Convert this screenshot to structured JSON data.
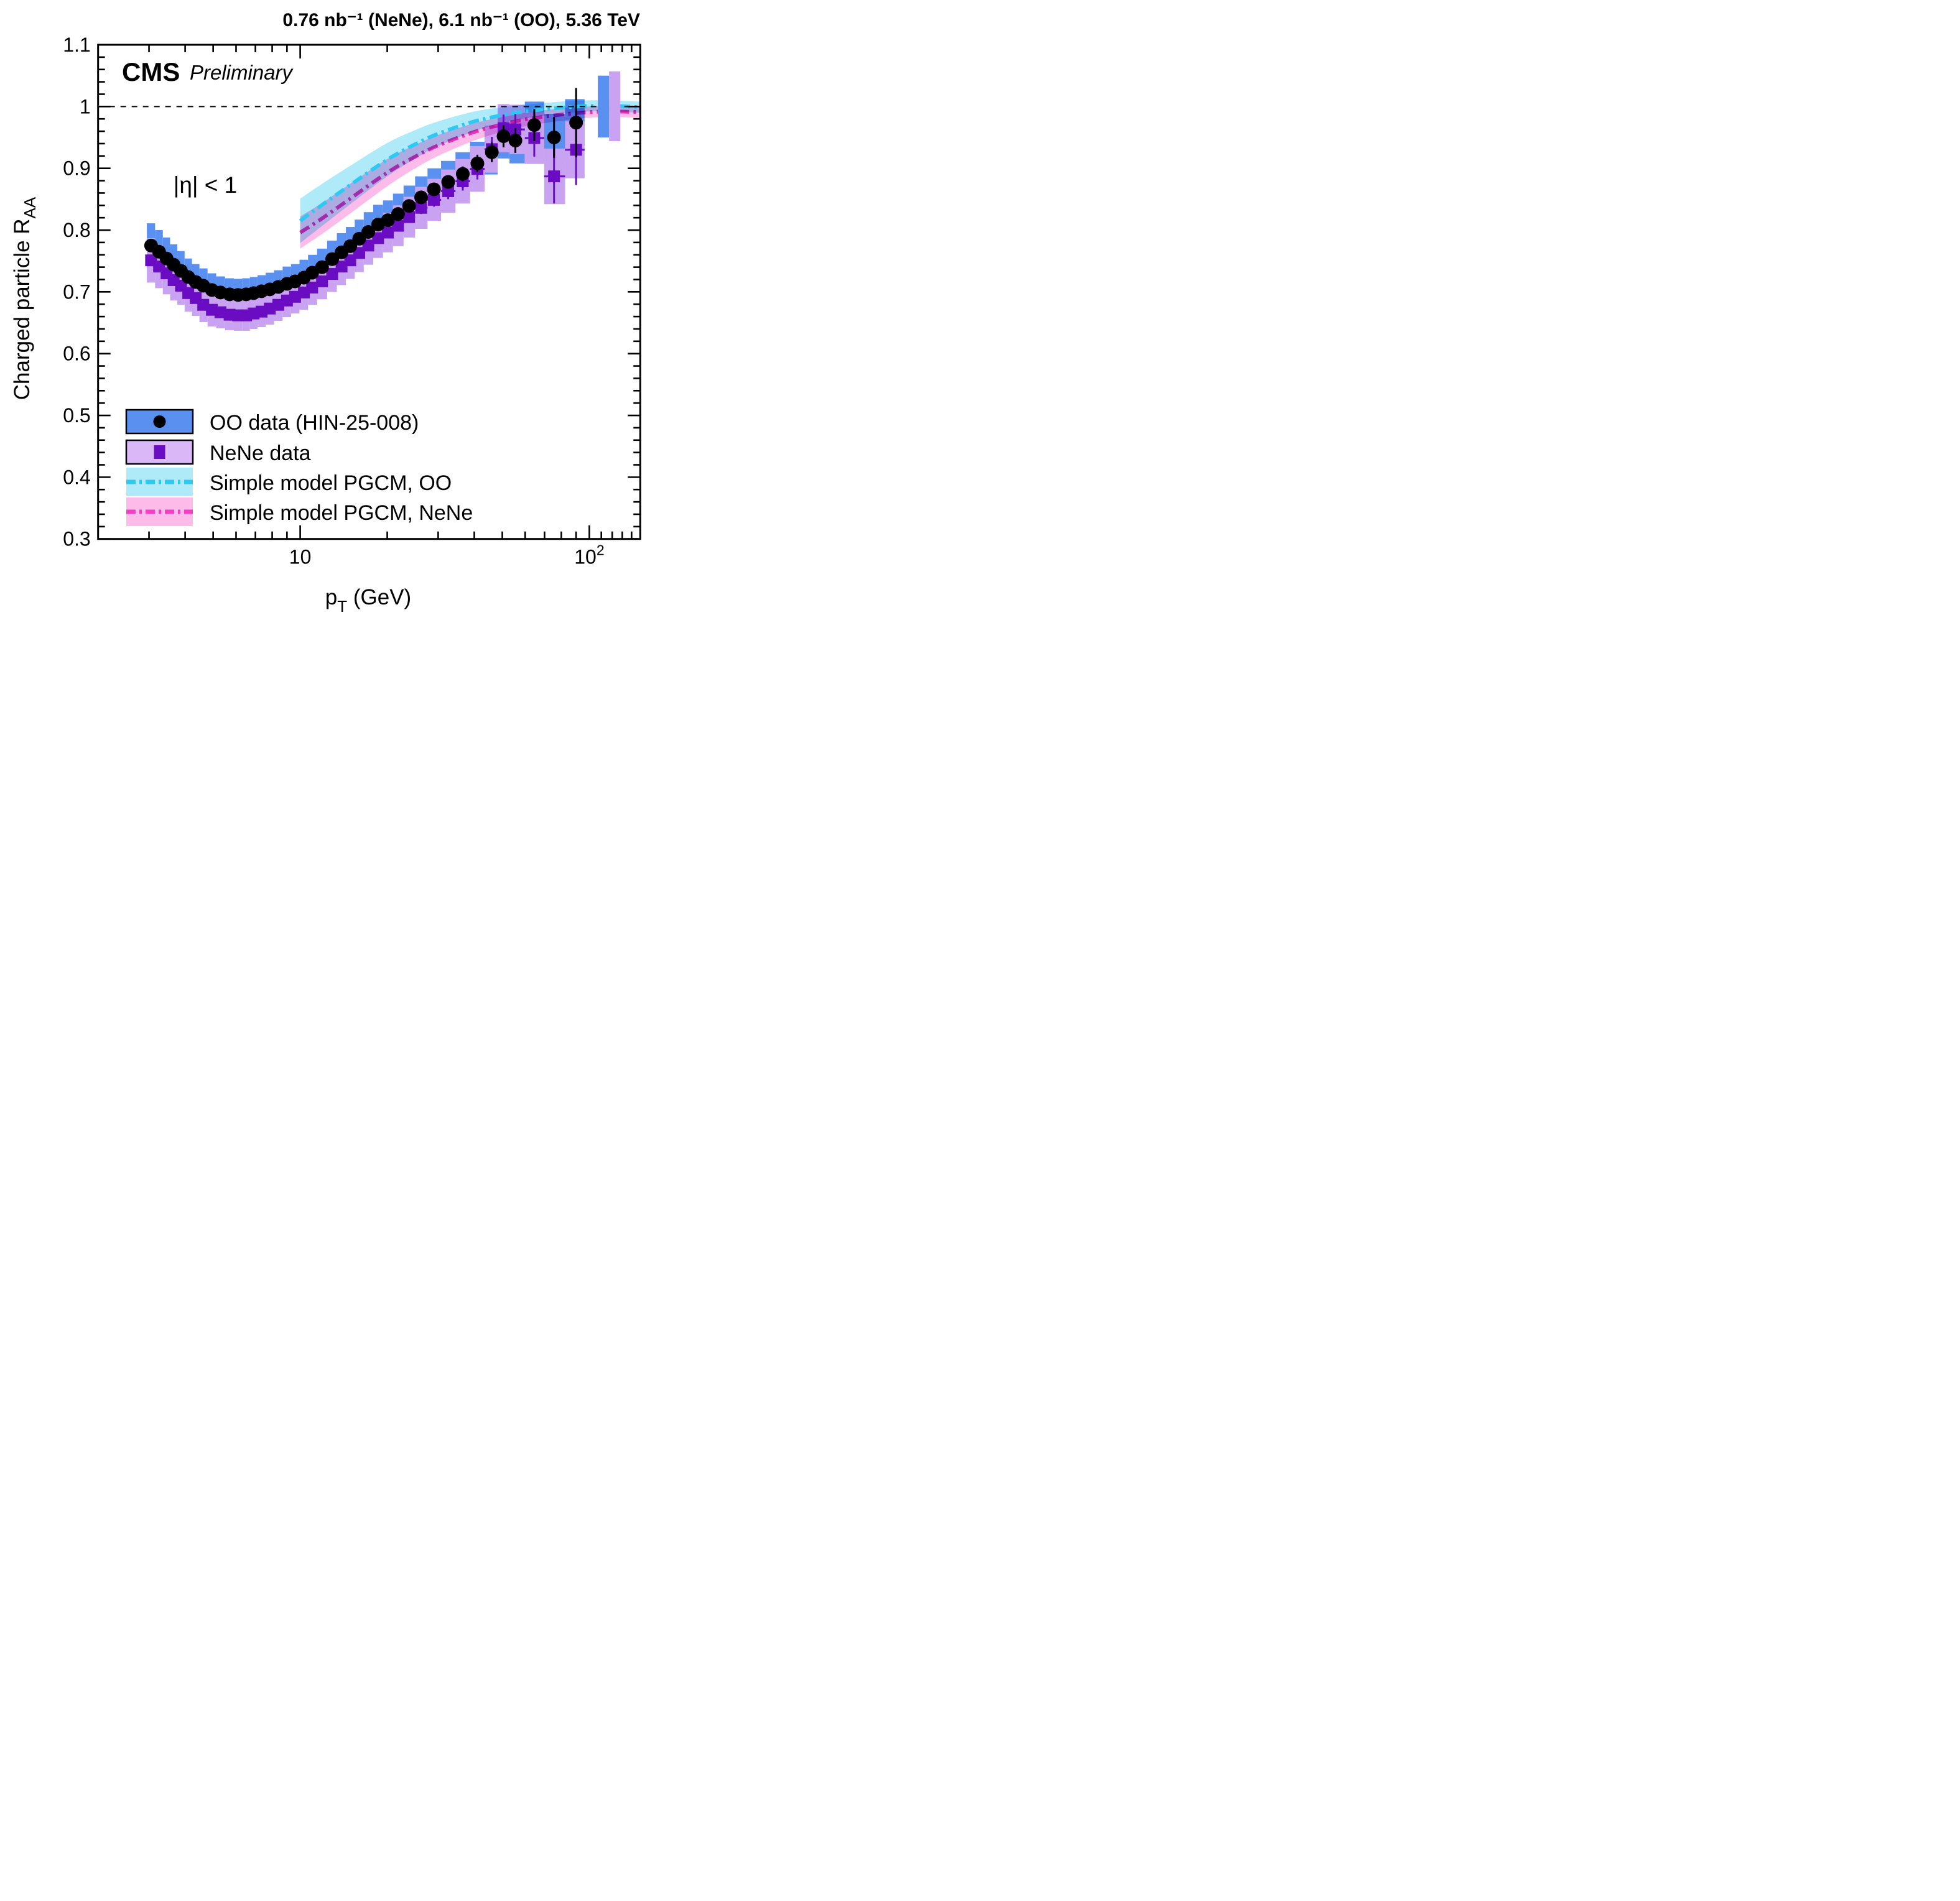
{
  "header": {
    "lumi_energy_label": "0.76 nb⁻¹ (NeNe), 6.1 nb⁻¹ (OO), 5.36 TeV",
    "experiment": "CMS",
    "status": "Preliminary"
  },
  "annotations": {
    "eta_cut": "|η| < 1"
  },
  "axes": {
    "x": {
      "label_main": "p",
      "label_sub": "T",
      "label_rest": " (GeV)",
      "scale": "log",
      "min": 2,
      "max": 150,
      "major_ticks": [
        10,
        100
      ],
      "major_tick_labels": [
        {
          "base": "10",
          "sup": ""
        },
        {
          "base": "10",
          "sup": "2"
        }
      ]
    },
    "y": {
      "label_main": "Charged particle R",
      "label_sub": "AA",
      "min": 0.3,
      "max": 1.1,
      "major_step": 0.1,
      "minor_step": 0.02,
      "tick_values": [
        0.3,
        0.4,
        0.5,
        0.6,
        0.7,
        0.8,
        0.9,
        1.0,
        1.1
      ],
      "tick_labels": [
        "0.3",
        "0.4",
        "0.5",
        "0.6",
        "0.7",
        "0.8",
        "0.9",
        "1",
        "1.1"
      ]
    },
    "reference_line_y": 1.0
  },
  "colors": {
    "oo_box": "#5a90f0",
    "nene_box": "#c9a2f2",
    "nene_box_legend": "#dab8f8",
    "oo_marker": "#000000",
    "nene_marker": "#6a0cc2",
    "pgcm_oo_band": "#aeeaf8",
    "pgcm_oo_line": "#2ec9f2",
    "pgcm_nene_band": "#fdbbe9",
    "pgcm_nene_line": "#f23fc4",
    "reference_line": "#000000"
  },
  "legend": {
    "items": [
      {
        "label": "OO data (HIN-25-008)",
        "swatch": "box-marker",
        "box_color": "#5a90f0",
        "border": "#000000",
        "marker": "circle",
        "marker_color": "#000000"
      },
      {
        "label": "NeNe data",
        "swatch": "box-marker",
        "box_color": "#dab8f8",
        "border": "#000000",
        "marker": "square",
        "marker_color": "#6a0cc2"
      },
      {
        "label": "Simple model PGCM, OO",
        "swatch": "band-line",
        "box_color": "#aeeaf8",
        "line_color": "#2ec9f2"
      },
      {
        "label": "Simple model PGCM, NeNe",
        "swatch": "band-line",
        "box_color": "#fdbbe9",
        "line_color": "#f23fc4"
      }
    ]
  },
  "chart_data": {
    "type": "scatter",
    "title": "Charged particle nuclear modification factor in OO and NeNe collisions at 5.36 TeV",
    "xlabel": "pT (GeV)",
    "ylabel": "Charged particle RAA",
    "xlim": [
      2,
      150
    ],
    "ylim": [
      0.3,
      1.1
    ],
    "x_scale": "log",
    "grid": false,
    "legend_position": "lower-left",
    "point_format": [
      "pT_GeV",
      "RAA",
      "stat_err",
      "sys_half_height"
    ],
    "series": [
      {
        "name": "OO data (HIN-25-008)",
        "marker": "circle",
        "points": [
          [
            3.05,
            0.775,
            0.003,
            0.036
          ],
          [
            3.25,
            0.765,
            0.003,
            0.035
          ],
          [
            3.45,
            0.754,
            0.003,
            0.034
          ],
          [
            3.65,
            0.744,
            0.003,
            0.033
          ],
          [
            3.87,
            0.734,
            0.003,
            0.032
          ],
          [
            4.1,
            0.724,
            0.003,
            0.03
          ],
          [
            4.35,
            0.716,
            0.003,
            0.029
          ],
          [
            4.62,
            0.71,
            0.003,
            0.028
          ],
          [
            4.95,
            0.703,
            0.003,
            0.027
          ],
          [
            5.3,
            0.699,
            0.003,
            0.026
          ],
          [
            5.7,
            0.696,
            0.003,
            0.026
          ],
          [
            6.1,
            0.695,
            0.003,
            0.026
          ],
          [
            6.5,
            0.696,
            0.003,
            0.026
          ],
          [
            6.9,
            0.698,
            0.003,
            0.026
          ],
          [
            7.35,
            0.701,
            0.003,
            0.026
          ],
          [
            7.85,
            0.704,
            0.003,
            0.027
          ],
          [
            8.4,
            0.708,
            0.003,
            0.027
          ],
          [
            9.0,
            0.713,
            0.003,
            0.028
          ],
          [
            9.6,
            0.717,
            0.003,
            0.028
          ],
          [
            10.3,
            0.723,
            0.004,
            0.029
          ],
          [
            11.0,
            0.731,
            0.004,
            0.029
          ],
          [
            11.9,
            0.74,
            0.004,
            0.03
          ],
          [
            12.9,
            0.753,
            0.004,
            0.03
          ],
          [
            13.9,
            0.764,
            0.004,
            0.031
          ],
          [
            14.9,
            0.774,
            0.005,
            0.031
          ],
          [
            16.0,
            0.786,
            0.005,
            0.031
          ],
          [
            17.2,
            0.797,
            0.005,
            0.032
          ],
          [
            18.6,
            0.809,
            0.006,
            0.032
          ],
          [
            20.1,
            0.816,
            0.006,
            0.032
          ],
          [
            21.8,
            0.826,
            0.007,
            0.033
          ],
          [
            23.8,
            0.839,
            0.007,
            0.033
          ],
          [
            26.2,
            0.853,
            0.008,
            0.034
          ],
          [
            29.0,
            0.866,
            0.009,
            0.034
          ],
          [
            32.5,
            0.878,
            0.01,
            0.034
          ],
          [
            36.5,
            0.891,
            0.012,
            0.035
          ],
          [
            41.0,
            0.908,
            0.014,
            0.035
          ],
          [
            46.0,
            0.926,
            0.016,
            0.036
          ],
          [
            50.5,
            0.952,
            0.018,
            0.036
          ],
          [
            55.5,
            0.945,
            0.02,
            0.037
          ],
          [
            64.5,
            0.97,
            0.026,
            0.038
          ],
          [
            75.5,
            0.95,
            0.033,
            0.038
          ],
          [
            90.0,
            0.974,
            0.056,
            0.038
          ]
        ]
      },
      {
        "name": "NeNe data",
        "marker": "square",
        "points": [
          [
            3.05,
            0.751,
            0.003,
            0.036
          ],
          [
            3.25,
            0.741,
            0.003,
            0.035
          ],
          [
            3.45,
            0.73,
            0.003,
            0.034
          ],
          [
            3.65,
            0.719,
            0.003,
            0.033
          ],
          [
            3.87,
            0.71,
            0.003,
            0.031
          ],
          [
            4.1,
            0.698,
            0.003,
            0.03
          ],
          [
            4.35,
            0.69,
            0.003,
            0.029
          ],
          [
            4.62,
            0.679,
            0.003,
            0.028
          ],
          [
            4.95,
            0.671,
            0.003,
            0.027
          ],
          [
            5.3,
            0.667,
            0.003,
            0.026
          ],
          [
            5.7,
            0.663,
            0.003,
            0.025
          ],
          [
            6.1,
            0.662,
            0.003,
            0.025
          ],
          [
            6.5,
            0.662,
            0.003,
            0.025
          ],
          [
            6.9,
            0.665,
            0.003,
            0.025
          ],
          [
            7.35,
            0.668,
            0.003,
            0.025
          ],
          [
            7.85,
            0.673,
            0.003,
            0.026
          ],
          [
            8.4,
            0.679,
            0.003,
            0.026
          ],
          [
            9.0,
            0.686,
            0.004,
            0.027
          ],
          [
            9.6,
            0.692,
            0.004,
            0.027
          ],
          [
            10.3,
            0.699,
            0.004,
            0.028
          ],
          [
            11.0,
            0.707,
            0.004,
            0.028
          ],
          [
            11.9,
            0.717,
            0.005,
            0.029
          ],
          [
            12.9,
            0.729,
            0.005,
            0.029
          ],
          [
            13.9,
            0.741,
            0.005,
            0.03
          ],
          [
            14.9,
            0.751,
            0.006,
            0.03
          ],
          [
            16.0,
            0.763,
            0.006,
            0.031
          ],
          [
            17.2,
            0.775,
            0.007,
            0.031
          ],
          [
            18.6,
            0.787,
            0.007,
            0.032
          ],
          [
            20.1,
            0.796,
            0.008,
            0.032
          ],
          [
            21.8,
            0.807,
            0.008,
            0.033
          ],
          [
            23.8,
            0.821,
            0.009,
            0.033
          ],
          [
            26.2,
            0.836,
            0.01,
            0.034
          ],
          [
            29.0,
            0.849,
            0.011,
            0.034
          ],
          [
            32.5,
            0.863,
            0.013,
            0.035
          ],
          [
            36.5,
            0.879,
            0.015,
            0.036
          ],
          [
            41.0,
            0.899,
            0.017,
            0.037
          ],
          [
            46.0,
            0.931,
            0.02,
            0.038
          ],
          [
            50.5,
            0.965,
            0.022,
            0.039
          ],
          [
            55.5,
            0.963,
            0.025,
            0.04
          ],
          [
            64.5,
            0.949,
            0.03,
            0.042
          ],
          [
            75.5,
            0.887,
            0.044,
            0.045
          ],
          [
            90.0,
            0.93,
            0.057,
            0.046
          ]
        ]
      }
    ],
    "models": [
      {
        "name": "Simple model PGCM, OO",
        "band_format": [
          "pT_GeV",
          "center",
          "half_width"
        ],
        "points": [
          [
            10,
            0.815,
            0.036
          ],
          [
            12,
            0.842,
            0.034
          ],
          [
            15,
            0.874,
            0.031
          ],
          [
            20,
            0.914,
            0.027
          ],
          [
            25,
            0.939,
            0.023
          ],
          [
            30,
            0.956,
            0.02
          ],
          [
            40,
            0.976,
            0.016
          ],
          [
            50,
            0.986,
            0.013
          ],
          [
            60,
            0.992,
            0.011
          ],
          [
            80,
            0.998,
            0.01
          ],
          [
            100,
            1.001,
            0.009
          ],
          [
            120,
            1.001,
            0.009
          ],
          [
            150,
            0.999,
            0.009
          ]
        ]
      },
      {
        "name": "Simple model PGCM, NeNe",
        "band_format": [
          "pT_GeV",
          "center",
          "half_width"
        ],
        "points": [
          [
            10,
            0.796,
            0.026
          ],
          [
            12,
            0.82,
            0.025
          ],
          [
            15,
            0.852,
            0.024
          ],
          [
            20,
            0.893,
            0.022
          ],
          [
            25,
            0.919,
            0.019
          ],
          [
            30,
            0.937,
            0.017
          ],
          [
            40,
            0.959,
            0.014
          ],
          [
            50,
            0.971,
            0.012
          ],
          [
            60,
            0.979,
            0.011
          ],
          [
            80,
            0.987,
            0.01
          ],
          [
            100,
            0.991,
            0.009
          ],
          [
            120,
            0.992,
            0.009
          ],
          [
            150,
            0.991,
            0.009
          ]
        ]
      }
    ],
    "normalization_boxes": [
      {
        "series": "OO",
        "pt_range": [
          107,
          117
        ],
        "raa_range": [
          0.95,
          1.05
        ]
      },
      {
        "series": "NeNe",
        "pt_range": [
          117,
          128
        ],
        "raa_range": [
          0.944,
          1.057
        ]
      }
    ]
  }
}
